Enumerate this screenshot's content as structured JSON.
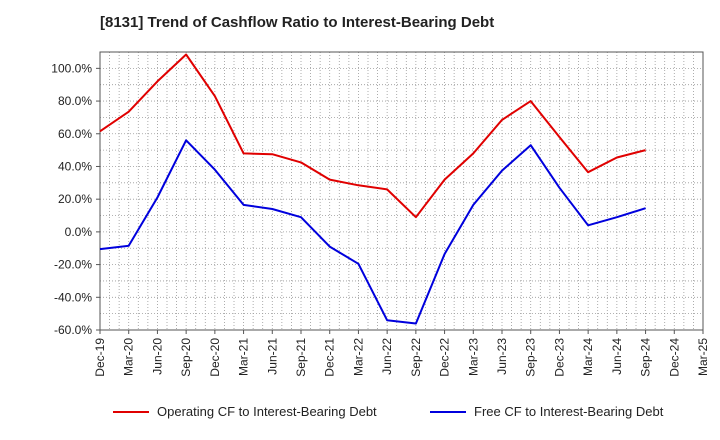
{
  "title": "[8131]  Trend of Cashflow Ratio to Interest-Bearing Debt",
  "colors": {
    "operating": "#e00000",
    "free": "#0000dd"
  },
  "chart_data": {
    "type": "line",
    "title": "[8131]  Trend of Cashflow Ratio to Interest-Bearing Debt",
    "xlabel": "",
    "ylabel": "",
    "x_ticks": [
      "Dec-19",
      "Mar-20",
      "Jun-20",
      "Sep-20",
      "Dec-20",
      "Mar-21",
      "Jun-21",
      "Sep-21",
      "Dec-21",
      "Mar-22",
      "Jun-22",
      "Sep-22",
      "Dec-22",
      "Mar-23",
      "Jun-23",
      "Sep-23",
      "Dec-23",
      "Mar-24",
      "Jun-24",
      "Sep-24",
      "Dec-24",
      "Mar-25"
    ],
    "x": [
      "Dec-19",
      "Mar-20",
      "Jun-20",
      "Sep-20",
      "Dec-20",
      "Mar-21",
      "Jun-21",
      "Sep-21",
      "Dec-21",
      "Mar-22",
      "Jun-22",
      "Sep-22",
      "Dec-22",
      "Mar-23",
      "Jun-23",
      "Sep-23",
      "Dec-23",
      "Mar-24",
      "Jun-24",
      "Sep-24"
    ],
    "y_ticks": [
      "100.0%",
      "80.0%",
      "60.0%",
      "40.0%",
      "20.0%",
      "0.0%",
      "-20.0%",
      "-40.0%",
      "-60.0%"
    ],
    "ylim": [
      -60,
      110
    ],
    "grid": true,
    "legend_position": "bottom",
    "series": [
      {
        "name": "Operating CF to Interest-Bearing Debt",
        "color": "#e00000",
        "values": [
          61.5,
          73.5,
          92.0,
          108.5,
          83.0,
          48.0,
          47.5,
          42.5,
          32.0,
          28.5,
          26.0,
          9.0,
          32.0,
          48.0,
          68.5,
          80.0,
          58.0,
          36.5,
          45.5,
          50.0
        ]
      },
      {
        "name": "Free CF to Interest-Bearing Debt",
        "color": "#0000dd",
        "values": [
          -10.5,
          -8.5,
          21.0,
          56.0,
          38.0,
          16.5,
          14.0,
          9.0,
          -9.0,
          -19.5,
          -54.0,
          -56.0,
          -13.5,
          16.5,
          37.5,
          53.0,
          27.0,
          4.0,
          9.0,
          14.5
        ]
      }
    ]
  }
}
